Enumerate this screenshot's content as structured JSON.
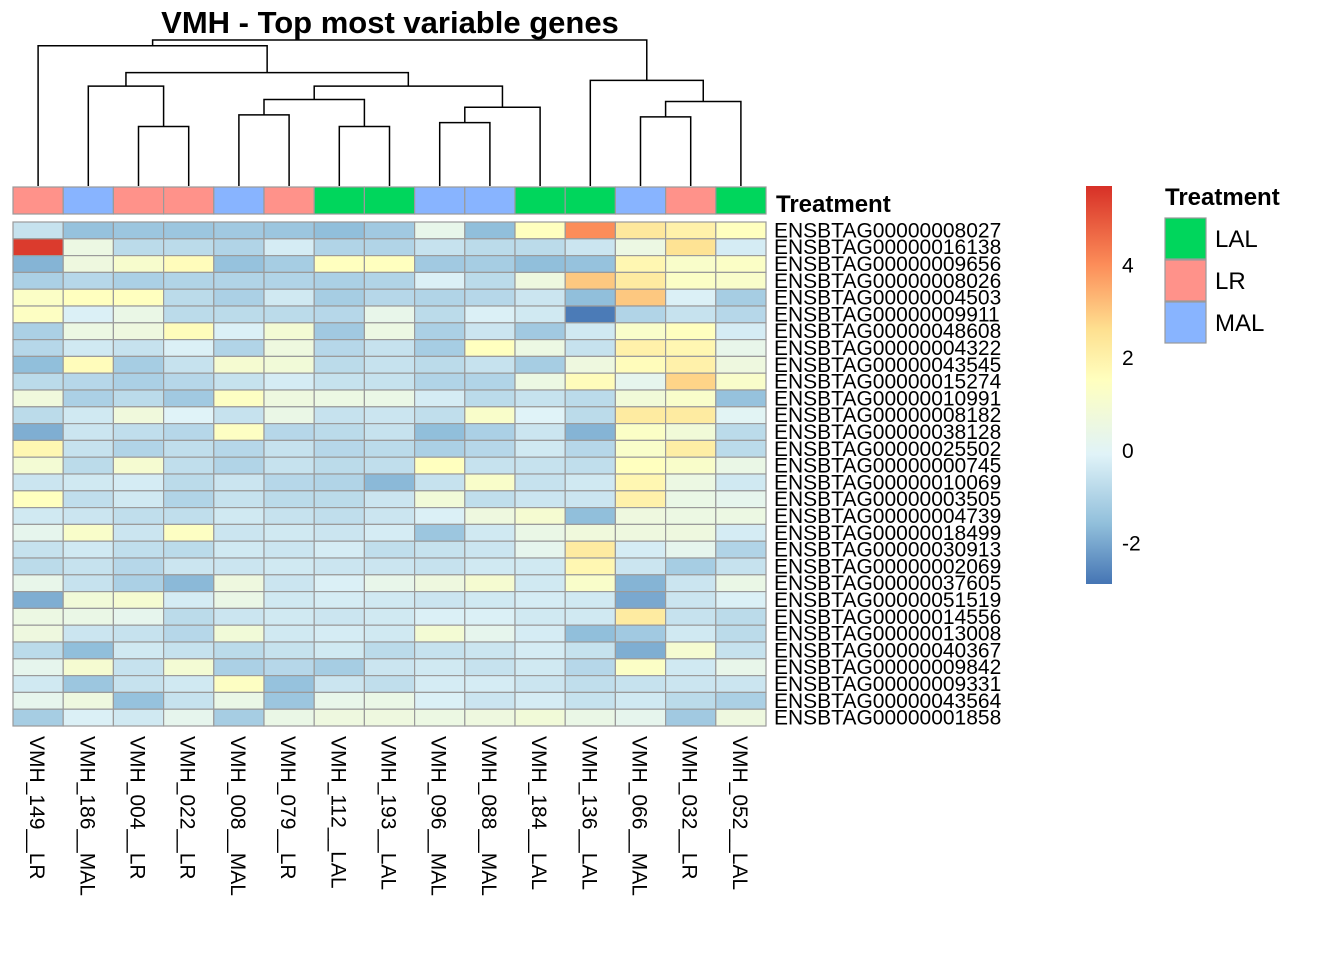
{
  "chart_data": {
    "type": "heatmap",
    "title": "VMH - Top most variable genes",
    "columns": [
      "VMH_149__LR",
      "VMH_186__MAL",
      "VMH_004__LR",
      "VMH_022__LR",
      "VMH_008__MAL",
      "VMH_079__LR",
      "VMH_112__LAL",
      "VMH_193__LAL",
      "VMH_096__MAL",
      "VMH_088__MAL",
      "VMH_184__LAL",
      "VMH_136__LAL",
      "VMH_066__MAL",
      "VMH_032__LR",
      "VMH_052__LAL"
    ],
    "column_treatment": [
      "LR",
      "MAL",
      "LR",
      "LR",
      "MAL",
      "LR",
      "LAL",
      "LAL",
      "MAL",
      "MAL",
      "LAL",
      "LAL",
      "MAL",
      "LR",
      "LAL"
    ],
    "rows": [
      "ENSBTAG00000008027",
      "ENSBTAG00000016138",
      "ENSBTAG00000009656",
      "ENSBTAG00000008026",
      "ENSBTAG00000004503",
      "ENSBTAG00000009911",
      "ENSBTAG00000048608",
      "ENSBTAG00000004322",
      "ENSBTAG00000043545",
      "ENSBTAG00000015274",
      "ENSBTAG00000010991",
      "ENSBTAG00000008182",
      "ENSBTAG00000038128",
      "ENSBTAG00000025502",
      "ENSBTAG00000000745",
      "ENSBTAG00000010069",
      "ENSBTAG00000003505",
      "ENSBTAG00000004739",
      "ENSBTAG00000018499",
      "ENSBTAG00000030913",
      "ENSBTAG00000002069",
      "ENSBTAG00000037605",
      "ENSBTAG00000051519",
      "ENSBTAG00000014556",
      "ENSBTAG00000013008",
      "ENSBTAG00000040367",
      "ENSBTAG00000009842",
      "ENSBTAG00000009331",
      "ENSBTAG00000043564",
      "ENSBTAG00000001858"
    ],
    "values": [
      [
        -0.6,
        -1.5,
        -1.4,
        -1.4,
        -1.3,
        -1.4,
        -1.6,
        -1.3,
        0.3,
        -1.6,
        1.5,
        4.0,
        2.3,
        2.0,
        1.5
      ],
      [
        5.5,
        0.5,
        -0.8,
        -0.8,
        -1.0,
        -0.3,
        -1.0,
        -1.0,
        -0.6,
        -0.8,
        -0.8,
        -0.5,
        0.5,
        2.5,
        -0.3
      ],
      [
        -1.8,
        0.6,
        1.1,
        1.6,
        -1.5,
        -1.2,
        1.5,
        1.5,
        -1.3,
        -1.2,
        -1.6,
        -1.5,
        1.8,
        1.2,
        1.3
      ],
      [
        -1.1,
        -0.9,
        -1.1,
        -1.0,
        -1.0,
        -1.0,
        -1.1,
        -1.0,
        -0.2,
        -0.8,
        0.6,
        3.0,
        2.2,
        1.3,
        1.2
      ],
      [
        1.3,
        1.5,
        1.5,
        -0.8,
        -1.1,
        -0.4,
        -1.2,
        -0.9,
        -1.0,
        -0.9,
        -0.5,
        -1.6,
        3.0,
        -0.2,
        -1.2
      ],
      [
        1.4,
        -0.2,
        0.4,
        -0.8,
        -0.8,
        -0.8,
        -0.9,
        0.3,
        -0.8,
        -0.2,
        -0.4,
        -2.8,
        -1.0,
        -0.6,
        -0.9
      ],
      [
        -1.1,
        0.5,
        0.6,
        1.6,
        -0.2,
        0.9,
        -1.3,
        0.5,
        -1.1,
        -0.5,
        -1.3,
        -0.4,
        1.2,
        1.5,
        -0.3
      ],
      [
        -0.9,
        -0.4,
        -0.6,
        -0.2,
        -1.0,
        0.6,
        -0.9,
        -0.6,
        -1.2,
        1.5,
        0.5,
        -0.6,
        2.0,
        1.8,
        0.3
      ],
      [
        -1.6,
        1.6,
        -1.2,
        -0.6,
        1.0,
        0.8,
        -0.8,
        -0.6,
        -0.8,
        -0.6,
        -1.2,
        0.6,
        1.6,
        2.0,
        0.6
      ],
      [
        -0.8,
        -0.9,
        -1.1,
        -0.9,
        -0.6,
        -0.3,
        -0.6,
        -0.6,
        -1.0,
        -1.0,
        0.5,
        1.6,
        0.2,
        2.8,
        1.2
      ],
      [
        0.7,
        -1.1,
        -0.8,
        -1.3,
        1.4,
        0.6,
        0.5,
        0.4,
        -0.3,
        -0.8,
        -0.6,
        -0.8,
        0.8,
        1.2,
        -1.5
      ],
      [
        -0.8,
        -0.4,
        0.7,
        -0.1,
        -0.6,
        0.4,
        -0.6,
        -0.5,
        -0.7,
        1.2,
        -0.1,
        -0.8,
        2.2,
        2.2,
        0.0
      ],
      [
        -1.9,
        -0.5,
        -0.7,
        -0.9,
        1.4,
        -0.9,
        -0.8,
        -0.6,
        -1.6,
        -1.1,
        -0.5,
        -1.8,
        1.3,
        0.8,
        -0.8
      ],
      [
        1.8,
        -0.6,
        -1.0,
        -0.7,
        -0.9,
        -0.6,
        -0.9,
        -0.8,
        -1.1,
        -0.9,
        -0.4,
        -0.9,
        1.2,
        2.1,
        -0.8
      ],
      [
        0.9,
        -0.8,
        1.0,
        -0.7,
        -1.0,
        -0.6,
        -0.8,
        -0.7,
        1.5,
        -0.6,
        -0.6,
        -0.7,
        1.5,
        1.2,
        0.4
      ],
      [
        -0.5,
        -0.4,
        -0.3,
        -0.8,
        -0.5,
        -0.9,
        -1.0,
        -1.7,
        -0.6,
        1.2,
        -0.6,
        -0.4,
        1.8,
        0.5,
        -0.4
      ],
      [
        1.5,
        -0.7,
        -0.4,
        -1.0,
        -0.6,
        -0.8,
        -0.8,
        -0.5,
        0.8,
        -0.7,
        -0.5,
        -0.5,
        2.0,
        0.4,
        0.2
      ],
      [
        -0.4,
        -0.5,
        -0.7,
        -0.7,
        -0.4,
        -0.6,
        -0.7,
        -0.5,
        -0.2,
        0.6,
        1.0,
        -1.6,
        0.6,
        0.5,
        0.5
      ],
      [
        0.2,
        1.2,
        -0.5,
        1.4,
        -0.5,
        -0.4,
        -0.5,
        -0.3,
        -1.4,
        -0.4,
        0.4,
        0.7,
        0.6,
        0.6,
        -0.3
      ],
      [
        -0.6,
        -0.4,
        -0.7,
        -0.8,
        -0.4,
        -0.5,
        -0.3,
        -0.7,
        -0.6,
        -0.5,
        0.2,
        2.2,
        -0.3,
        0.2,
        -1.0
      ],
      [
        -0.8,
        -0.6,
        -0.9,
        -0.5,
        -0.5,
        -0.4,
        -0.5,
        -0.5,
        -0.6,
        -0.4,
        -0.4,
        1.8,
        -0.5,
        -1.2,
        -0.6
      ],
      [
        0.3,
        -0.6,
        -1.1,
        -1.7,
        0.6,
        -0.5,
        -0.2,
        0.3,
        0.6,
        1.0,
        -0.4,
        1.2,
        -1.8,
        -0.5,
        0.4
      ],
      [
        -1.9,
        0.8,
        1.0,
        -0.3,
        0.4,
        -0.4,
        -0.3,
        -0.4,
        -0.5,
        -0.4,
        -0.3,
        -0.4,
        -2.0,
        -0.5,
        -0.2
      ],
      [
        0.5,
        0.4,
        0.2,
        -0.8,
        -0.5,
        -0.4,
        -0.5,
        -0.4,
        -0.2,
        -0.2,
        -0.4,
        -0.4,
        2.2,
        -0.6,
        -0.8
      ],
      [
        0.6,
        -0.5,
        -0.6,
        -0.9,
        0.8,
        -0.4,
        -0.3,
        -0.4,
        0.9,
        0.2,
        -0.3,
        -1.6,
        -1.3,
        -0.4,
        -0.8
      ],
      [
        -0.8,
        -1.6,
        -0.4,
        -0.6,
        -0.8,
        -0.6,
        -0.4,
        -0.8,
        -0.6,
        -0.5,
        -0.3,
        -0.6,
        -1.9,
        1.0,
        -0.6
      ],
      [
        0.2,
        1.0,
        -0.6,
        0.9,
        -1.1,
        -0.9,
        -1.2,
        -0.5,
        -0.4,
        -0.6,
        -0.4,
        -0.9,
        1.3,
        -0.4,
        0.3
      ],
      [
        -0.4,
        -1.4,
        -0.6,
        -0.4,
        1.4,
        -1.5,
        -0.5,
        -0.7,
        -0.3,
        -0.3,
        -0.5,
        -0.7,
        -0.6,
        -0.5,
        -0.5
      ],
      [
        0.2,
        0.6,
        -1.5,
        -0.6,
        0.4,
        -1.4,
        0.3,
        0.4,
        -0.2,
        -0.5,
        -0.3,
        -0.6,
        -0.4,
        -0.8,
        -1.1
      ],
      [
        -1.2,
        -0.2,
        -0.4,
        0.2,
        -1.2,
        0.4,
        0.6,
        0.6,
        0.5,
        0.6,
        0.8,
        0.4,
        0.2,
        -1.3,
        0.6
      ]
    ],
    "column_annotation_title": "Treatment",
    "legend": {
      "title": "Treatment",
      "entries": [
        {
          "label": "LAL",
          "color": "#00D65C"
        },
        {
          "label": "LR",
          "color": "#FF928A"
        },
        {
          "label": "MAL",
          "color": "#88B4FF"
        }
      ]
    },
    "colorbar": {
      "ticks": [
        "4",
        "2",
        "0",
        "-2"
      ],
      "tick_values": [
        4,
        2,
        0,
        -2
      ],
      "range": [
        -2.9,
        5.7
      ],
      "palette": [
        "#4575B4",
        "#91BFDB",
        "#E0F3F8",
        "#FFFFBF",
        "#FEE090",
        "#FC8D59",
        "#D73027"
      ],
      "palette_stops": [
        -2.9,
        -1.6,
        -0.1,
        1.5,
        2.6,
        4.0,
        5.7
      ]
    },
    "column_dendrogram": {
      "merges": [
        [
          -3,
          -4
        ],
        [
          -8,
          -7
        ],
        [
          -10,
          -9
        ],
        [
          -13,
          -14
        ],
        [
          -5,
          -6
        ],
        [
          -11,
          3
        ],
        [
          -15,
          4
        ],
        [
          5,
          2
        ],
        [
          -2,
          1
        ],
        [
          8,
          6
        ],
        [
          -12,
          7
        ],
        [
          9,
          10
        ],
        [
          -1,
          12
        ],
        [
          13,
          11
        ]
      ],
      "heights": [
        1.55,
        1.55,
        1.65,
        1.8,
        1.85,
        2.05,
        2.2,
        2.25,
        2.6,
        2.6,
        2.75,
        2.95,
        3.65,
        3.8
      ]
    },
    "grid": false
  }
}
